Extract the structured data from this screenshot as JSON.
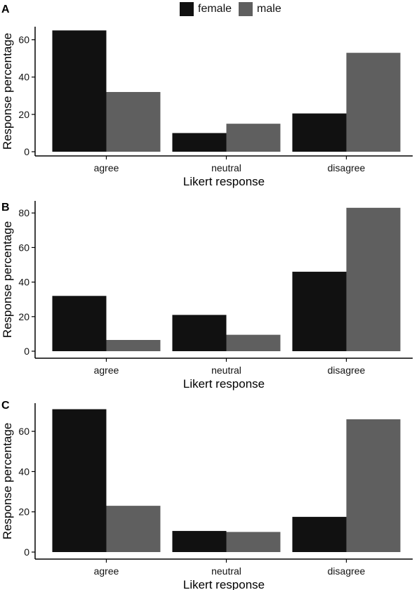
{
  "legend": {
    "items": [
      {
        "label": "female",
        "color": "#111111"
      },
      {
        "label": "male",
        "color": "#5f5f5f"
      }
    ],
    "placement": "top-center"
  },
  "chart_data": [
    {
      "type": "bar",
      "panel_label": "A",
      "categories": [
        "agree",
        "neutral",
        "disagree"
      ],
      "series": [
        {
          "name": "female",
          "values": [
            65,
            10,
            20.5
          ]
        },
        {
          "name": "male",
          "values": [
            32,
            15,
            53
          ]
        }
      ],
      "xlabel": "Likert response",
      "ylabel": "Response percentage",
      "ylim": [
        0,
        67
      ],
      "yticks": [
        0,
        20,
        40,
        60
      ],
      "grid": false
    },
    {
      "type": "bar",
      "panel_label": "B",
      "categories": [
        "agree",
        "neutral",
        "disagree"
      ],
      "series": [
        {
          "name": "female",
          "values": [
            32,
            21,
            46
          ]
        },
        {
          "name": "male",
          "values": [
            6.5,
            9.5,
            83
          ]
        }
      ],
      "xlabel": "Likert response",
      "ylabel": "Response percentage",
      "ylim": [
        0,
        87
      ],
      "yticks": [
        0,
        20,
        40,
        60,
        80
      ],
      "grid": false
    },
    {
      "type": "bar",
      "panel_label": "C",
      "categories": [
        "agree",
        "neutral",
        "disagree"
      ],
      "series": [
        {
          "name": "female",
          "values": [
            71,
            10.5,
            17.5
          ]
        },
        {
          "name": "male",
          "values": [
            23,
            10,
            66
          ]
        }
      ],
      "xlabel": "Likert response",
      "ylabel": "Response percentage",
      "ylim": [
        0,
        74
      ],
      "yticks": [
        0,
        20,
        40,
        60
      ],
      "grid": false
    }
  ]
}
